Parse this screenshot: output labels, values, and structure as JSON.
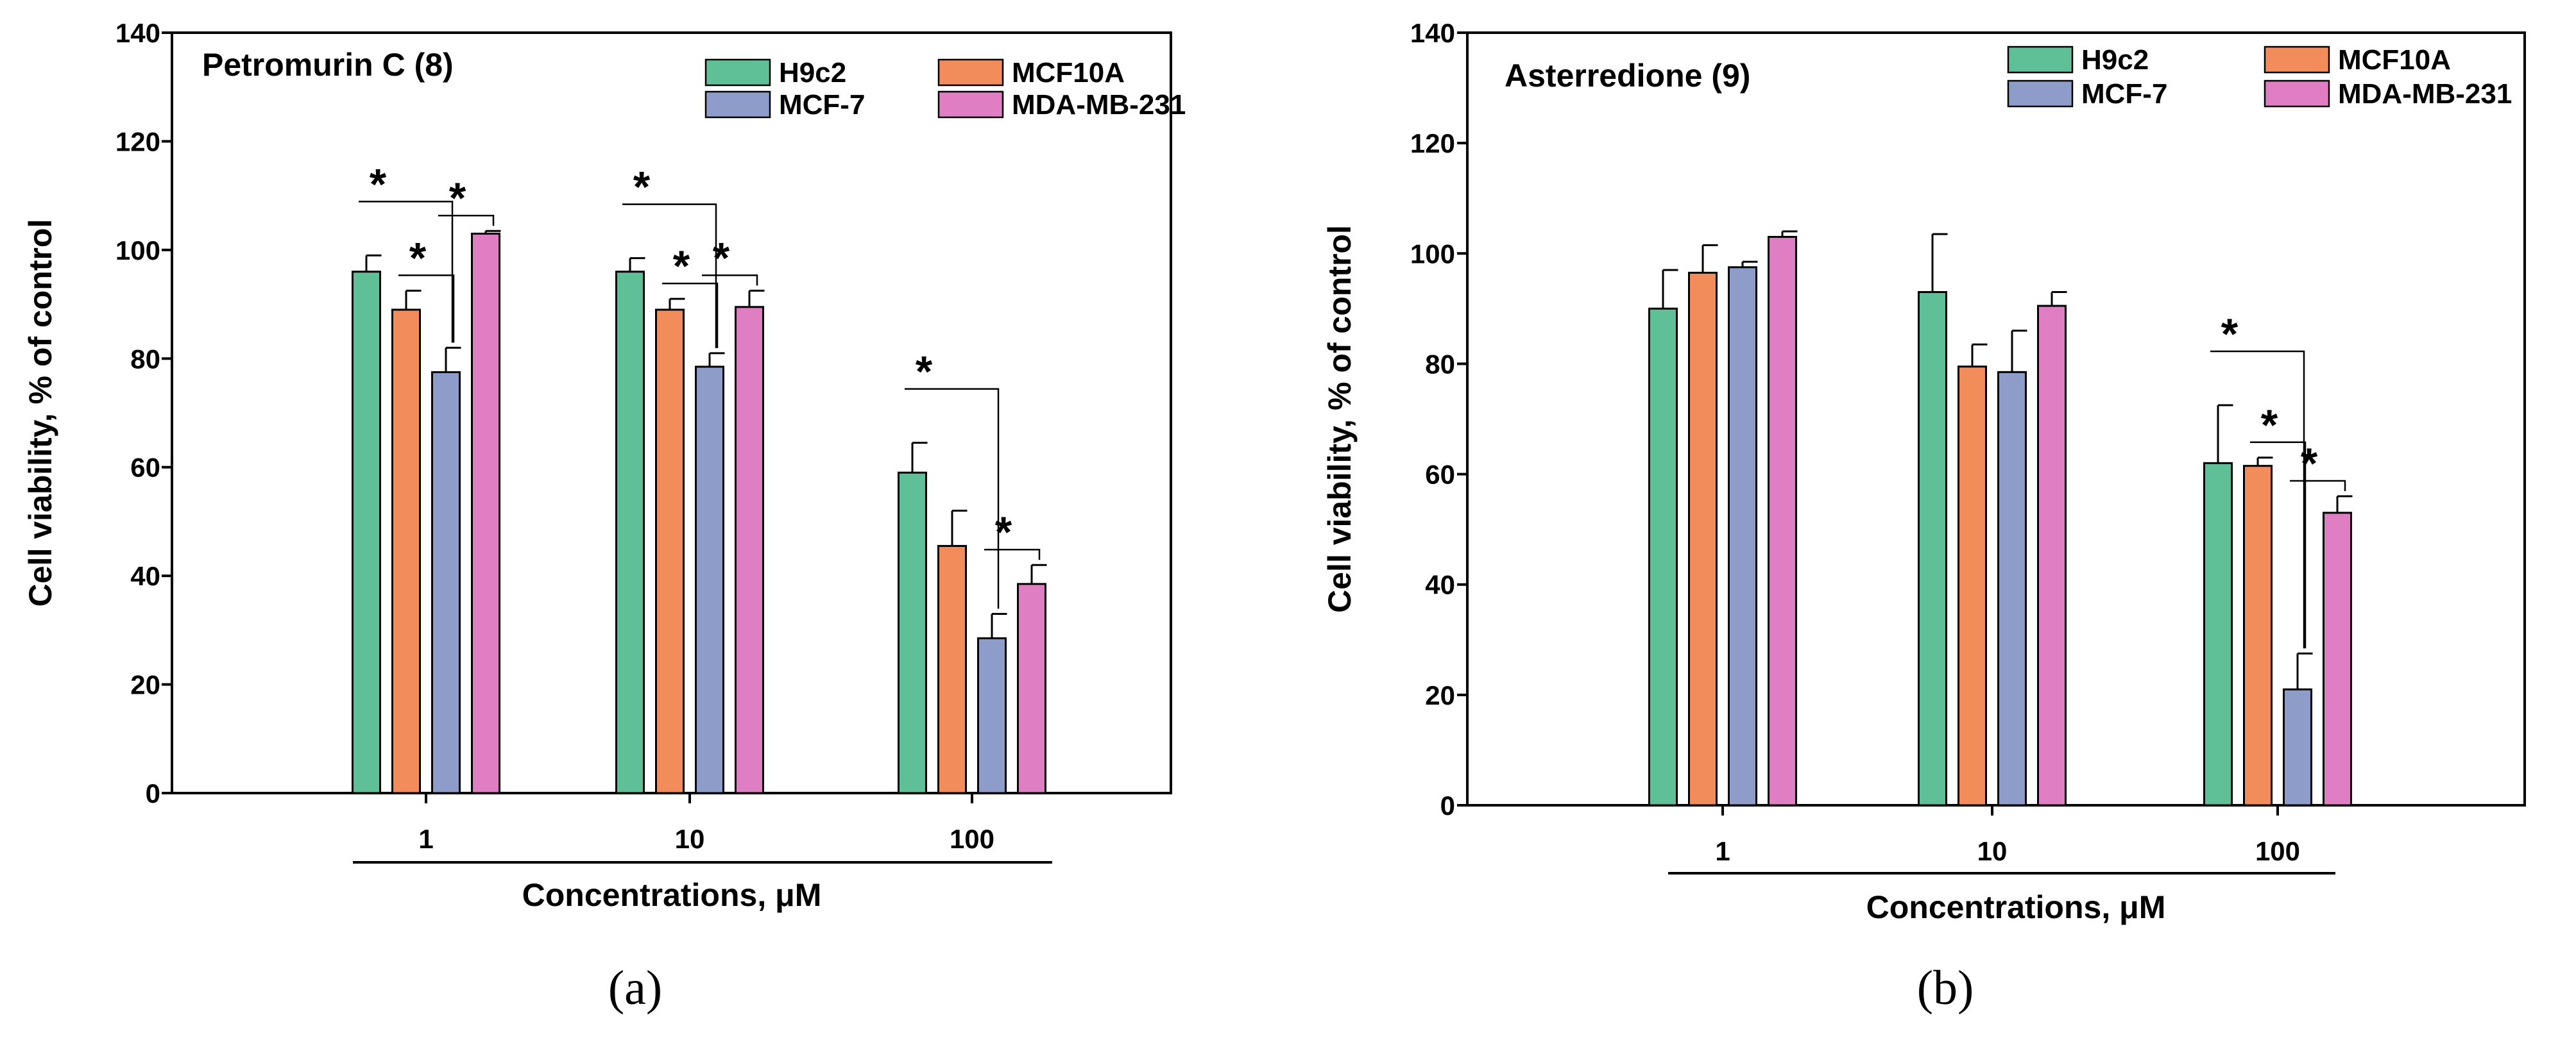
{
  "chart_data": [
    {
      "type": "bar",
      "panel": "(a)",
      "title": "Petromurin C (8)",
      "xlabel": "Concentrations, μM",
      "ylabel": "Cell viability, % of control",
      "ylim": [
        0,
        140
      ],
      "yticks": [
        0,
        20,
        40,
        60,
        80,
        100,
        120,
        140
      ],
      "categories": [
        "1",
        "10",
        "100"
      ],
      "legend_position": "top-right",
      "series": [
        {
          "name": "H9c2",
          "color": "#5fbf97",
          "values": [
            96,
            96,
            59
          ],
          "errors": [
            3,
            2.5,
            5.5
          ]
        },
        {
          "name": "MCF10A",
          "color": "#f28c5b",
          "values": [
            89,
            89,
            45.5
          ],
          "errors": [
            3.5,
            2,
            6.5
          ]
        },
        {
          "name": "MCF-7",
          "color": "#8d9cc9",
          "values": [
            77.5,
            78.5,
            28.5
          ],
          "errors": [
            4.5,
            2.5,
            4.5
          ]
        },
        {
          "name": "MDA-MB-231",
          "color": "#df7ec2",
          "values": [
            103,
            89.5,
            38.5
          ],
          "errors": [
            0.5,
            3,
            3.5
          ]
        }
      ],
      "significance": [
        {
          "category": 0,
          "from": 0,
          "to": 2,
          "label": "*"
        },
        {
          "category": 0,
          "from": 1,
          "to": 2,
          "label": "*"
        },
        {
          "category": 0,
          "from": 2,
          "to": 3,
          "label": "*"
        },
        {
          "category": 1,
          "from": 0,
          "to": 2,
          "label": "*"
        },
        {
          "category": 1,
          "from": 1,
          "to": 2,
          "label": "*"
        },
        {
          "category": 1,
          "from": 2,
          "to": 3,
          "label": "*"
        },
        {
          "category": 2,
          "from": 0,
          "to": 2,
          "label": "*"
        },
        {
          "category": 2,
          "from": 2,
          "to": 3,
          "label": "*"
        }
      ]
    },
    {
      "type": "bar",
      "panel": "(b)",
      "title": "Asterredione (9)",
      "xlabel": "Concentrations, μM",
      "ylabel": "Cell viability, % of control",
      "ylim": [
        0,
        140
      ],
      "yticks": [
        0,
        20,
        40,
        60,
        80,
        100,
        120,
        140
      ],
      "categories": [
        "1",
        "10",
        "100"
      ],
      "legend_position": "top-right",
      "series": [
        {
          "name": "H9c2",
          "color": "#5fbf97",
          "values": [
            90,
            93,
            62
          ],
          "errors": [
            7,
            10.5,
            10.5
          ]
        },
        {
          "name": "MCF10A",
          "color": "#f28c5b",
          "values": [
            96.5,
            79.5,
            61.5
          ],
          "errors": [
            5,
            4,
            1.5
          ]
        },
        {
          "name": "MCF-7",
          "color": "#8d9cc9",
          "values": [
            97.5,
            78.5,
            21
          ],
          "errors": [
            1,
            7.5,
            6.5
          ]
        },
        {
          "name": "MDA-MB-231",
          "color": "#df7ec2",
          "values": [
            103,
            90.5,
            53
          ],
          "errors": [
            1,
            2.5,
            3
          ]
        }
      ],
      "significance": [
        {
          "category": 2,
          "from": 0,
          "to": 2,
          "label": "*"
        },
        {
          "category": 2,
          "from": 1,
          "to": 2,
          "label": "*"
        },
        {
          "category": 2,
          "from": 2,
          "to": 3,
          "label": "*"
        }
      ]
    }
  ]
}
